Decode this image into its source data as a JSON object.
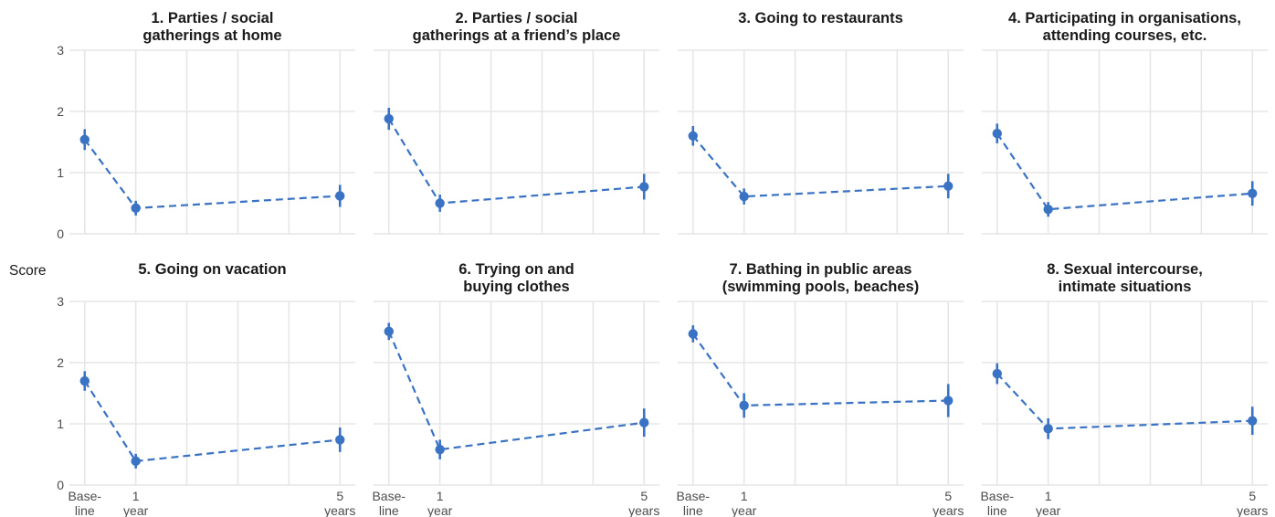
{
  "chart_data": {
    "type": "line",
    "ylabel": "Score",
    "ylim": [
      0,
      3
    ],
    "yticks": [
      "0",
      "1",
      "2",
      "3"
    ],
    "x_ticks": [
      {
        "x": 0,
        "lines": [
          "Base-",
          "line"
        ]
      },
      {
        "x": 1,
        "lines": [
          "1",
          "year"
        ]
      },
      {
        "x": 5,
        "lines": [
          "5",
          "years"
        ]
      }
    ],
    "xlim": [
      -0.3,
      5.3
    ],
    "grid": true,
    "color": "#3a72c4",
    "panels": [
      {
        "title": [
          "1. Parties / social",
          "gatherings at home"
        ],
        "x": [
          0,
          1,
          5
        ],
        "values": [
          1.54,
          0.42,
          0.62
        ],
        "lower": [
          1.37,
          0.3,
          0.44
        ],
        "upper": [
          1.71,
          0.54,
          0.8
        ]
      },
      {
        "title": [
          "2. Parties / social",
          "gatherings at a friend’s place"
        ],
        "x": [
          0,
          1,
          5
        ],
        "values": [
          1.88,
          0.5,
          0.77
        ],
        "lower": [
          1.7,
          0.36,
          0.56
        ],
        "upper": [
          2.06,
          0.64,
          0.98
        ]
      },
      {
        "title": [
          "3. Going to restaurants"
        ],
        "x": [
          0,
          1,
          5
        ],
        "values": [
          1.6,
          0.61,
          0.78
        ],
        "lower": [
          1.44,
          0.48,
          0.58
        ],
        "upper": [
          1.76,
          0.74,
          0.98
        ]
      },
      {
        "title": [
          "4. Participating in organisations,",
          "attending courses, etc."
        ],
        "x": [
          0,
          1,
          5
        ],
        "values": [
          1.64,
          0.4,
          0.66
        ],
        "lower": [
          1.48,
          0.28,
          0.46
        ],
        "upper": [
          1.8,
          0.52,
          0.86
        ]
      },
      {
        "title": [
          "5. Going on vacation"
        ],
        "x": [
          0,
          1,
          5
        ],
        "values": [
          1.7,
          0.39,
          0.74
        ],
        "lower": [
          1.54,
          0.27,
          0.54
        ],
        "upper": [
          1.86,
          0.51,
          0.94
        ]
      },
      {
        "title": [
          "6. Trying on and",
          "buying clothes"
        ],
        "x": [
          0,
          1,
          5
        ],
        "values": [
          2.51,
          0.58,
          1.02
        ],
        "lower": [
          2.37,
          0.42,
          0.79
        ],
        "upper": [
          2.65,
          0.74,
          1.25
        ]
      },
      {
        "title": [
          "7. Bathing in public areas",
          "(swimming pools, beaches)"
        ],
        "x": [
          0,
          1,
          5
        ],
        "values": [
          2.47,
          1.3,
          1.38
        ],
        "lower": [
          2.33,
          1.1,
          1.11
        ],
        "upper": [
          2.61,
          1.5,
          1.65
        ]
      },
      {
        "title": [
          "8. Sexual intercourse,",
          "intimate situations"
        ],
        "x": [
          0,
          1,
          5
        ],
        "values": [
          1.82,
          0.92,
          1.05
        ],
        "lower": [
          1.65,
          0.75,
          0.82
        ],
        "upper": [
          1.99,
          1.09,
          1.28
        ]
      }
    ]
  }
}
